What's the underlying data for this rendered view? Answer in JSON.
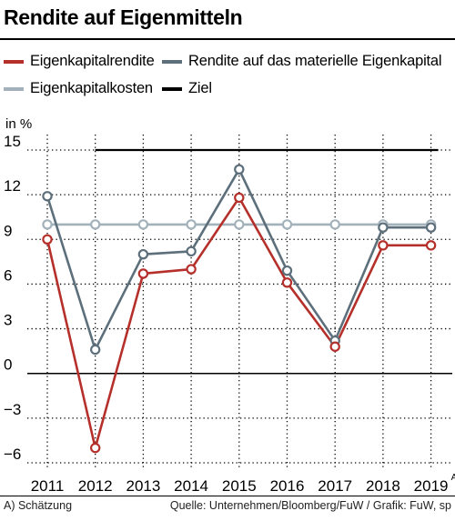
{
  "title": "Rendite auf Eigenmitteln",
  "unit_label": "in %",
  "footnote_left": "A) Schätzung",
  "footnote_right": "Quelle: Unternehmen/Bloomberg/FuW / Grafik: FuW, sp",
  "chart_data": {
    "type": "line",
    "title": "Rendite auf Eigenmitteln",
    "ylabel": "in %",
    "categories": [
      "2011",
      "2012",
      "2013",
      "2014",
      "2015",
      "2016",
      "2017",
      "2018",
      "2019"
    ],
    "category_superscripts": [
      "",
      "",
      "",
      "",
      "",
      "",
      "",
      "",
      "A"
    ],
    "ylim": [
      -6,
      15
    ],
    "yticks": [
      "15",
      "12",
      "9",
      "6",
      "3",
      "0",
      "−3",
      "−6"
    ],
    "ytick_values": [
      15,
      12,
      9,
      6,
      3,
      0,
      -3,
      -6
    ],
    "grid": "dotted",
    "legend_placement": "top",
    "series": [
      {
        "name": "Eigenkapitalrendite",
        "color": "#b5302a",
        "markers": true,
        "values": [
          9.0,
          -5.0,
          6.7,
          7.0,
          11.8,
          6.1,
          1.8,
          8.6,
          8.6
        ]
      },
      {
        "name": "Rendite auf das materielle Eigenkapital",
        "color": "#5c6f7b",
        "markers": true,
        "values": [
          11.9,
          1.6,
          8.0,
          8.2,
          13.7,
          6.9,
          2.2,
          9.8,
          9.8
        ]
      },
      {
        "name": "Eigenkapitalkosten",
        "color": "#a3b2ba",
        "markers": true,
        "values": [
          10.0,
          10.0,
          10.0,
          10.0,
          10.0,
          10.0,
          10.0,
          10.0,
          10.0
        ]
      },
      {
        "name": "Ziel",
        "color": "#000000",
        "markers": false,
        "x_start": "2012",
        "x_end": "2019",
        "values": [
          null,
          15,
          15,
          15,
          15,
          15,
          15,
          15,
          15
        ]
      }
    ]
  }
}
